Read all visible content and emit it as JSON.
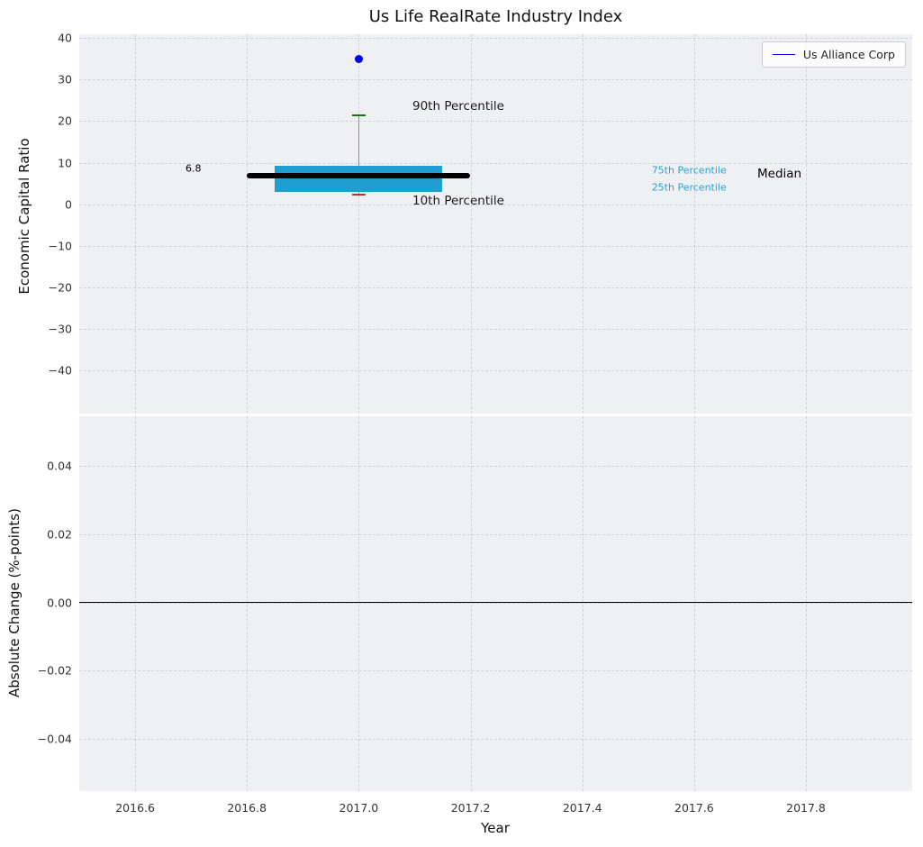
{
  "figure": {
    "title": "Us Life RealRate Industry Index",
    "xlabel": "Year",
    "legend": {
      "label": "Us Alliance Corp",
      "line_color": "#0000ee"
    }
  },
  "chart_data": [
    {
      "type": "boxplot",
      "subplot": "top",
      "title": "Us Life RealRate Industry Index",
      "ylabel": "Economic Capital Ratio",
      "xlabel": "Year",
      "xlim": [
        2016.5,
        2017.99
      ],
      "ylim": [
        -50.4,
        40.9
      ],
      "grid": true,
      "legend_position": "upper right",
      "show_xticklabels": false,
      "xticks": [
        {
          "value": 2016.6,
          "label": "2016.6"
        },
        {
          "value": 2016.8,
          "label": "2016.8"
        },
        {
          "value": 2017.0,
          "label": "2017.0"
        },
        {
          "value": 2017.2,
          "label": "2017.2"
        },
        {
          "value": 2017.4,
          "label": "2017.4"
        },
        {
          "value": 2017.6,
          "label": "2017.6"
        },
        {
          "value": 2017.8,
          "label": "2017.8"
        }
      ],
      "yticks": [
        {
          "value": 40,
          "label": "40"
        },
        {
          "value": 30,
          "label": "30"
        },
        {
          "value": 20,
          "label": "20"
        },
        {
          "value": 10,
          "label": "10"
        },
        {
          "value": 0,
          "label": "0"
        },
        {
          "value": -10,
          "label": "−10"
        },
        {
          "value": -20,
          "label": "−20"
        },
        {
          "value": -30,
          "label": "−30"
        },
        {
          "value": -40,
          "label": "−40"
        }
      ],
      "box": {
        "x_center": 2017.0,
        "box_left": 2016.85,
        "box_right": 2017.15,
        "q25": 3.0,
        "q75": 9.2,
        "p10": 2.4,
        "p90": 21.5,
        "median": 6.8,
        "median_left": 2016.8,
        "median_right": 2017.2,
        "box_color": "#1f9fd0",
        "median_color": "#000000",
        "whisker_color": "#909090",
        "p90_cap_color": "#008000",
        "p10_cap_color": "#c03030"
      },
      "point": {
        "x": 2017.0,
        "y": 35,
        "color": "#0000ee",
        "label": "Us Alliance Corp"
      },
      "annotations": [
        {
          "text": "6.8",
          "x": 2016.69,
          "y": 8.7,
          "color": "#000000",
          "size": 11
        },
        {
          "text": "90th Percentile",
          "x": 2017.096,
          "y": 23.6,
          "color": "#1a1a1a",
          "size": 13.5
        },
        {
          "text": "10th Percentile",
          "x": 2017.096,
          "y": 0.7,
          "color": "#1a1a1a",
          "size": 13.5
        },
        {
          "text": "75th Percentile",
          "x": 2017.524,
          "y": 8.2,
          "color": "#29a3d1",
          "size": 11
        },
        {
          "text": "25th Percentile",
          "x": 2017.524,
          "y": 4.1,
          "color": "#29a3d1",
          "size": 11
        },
        {
          "text": "Median",
          "x": 2017.713,
          "y": 7.2,
          "color": "#000000",
          "size": 13.5
        }
      ]
    },
    {
      "type": "line",
      "subplot": "bottom",
      "ylabel": "Absolute Change (%-points)",
      "xlabel": "Year",
      "xlim": [
        2016.5,
        2017.99
      ],
      "ylim": [
        -0.0553,
        0.0545
      ],
      "grid": true,
      "show_xticklabels": true,
      "xticks": [
        {
          "value": 2016.6,
          "label": "2016.6"
        },
        {
          "value": 2016.8,
          "label": "2016.8"
        },
        {
          "value": 2017.0,
          "label": "2017.0"
        },
        {
          "value": 2017.2,
          "label": "2017.2"
        },
        {
          "value": 2017.4,
          "label": "2017.4"
        },
        {
          "value": 2017.6,
          "label": "2017.6"
        },
        {
          "value": 2017.8,
          "label": "2017.8"
        }
      ],
      "yticks": [
        {
          "value": 0.04,
          "label": "0.04"
        },
        {
          "value": 0.02,
          "label": "0.02"
        },
        {
          "value": 0.0,
          "label": "0.00"
        },
        {
          "value": -0.02,
          "label": "−0.02"
        },
        {
          "value": -0.04,
          "label": "−0.04"
        }
      ],
      "zero_line": {
        "y": 0,
        "color": "#000000"
      },
      "series": []
    }
  ]
}
